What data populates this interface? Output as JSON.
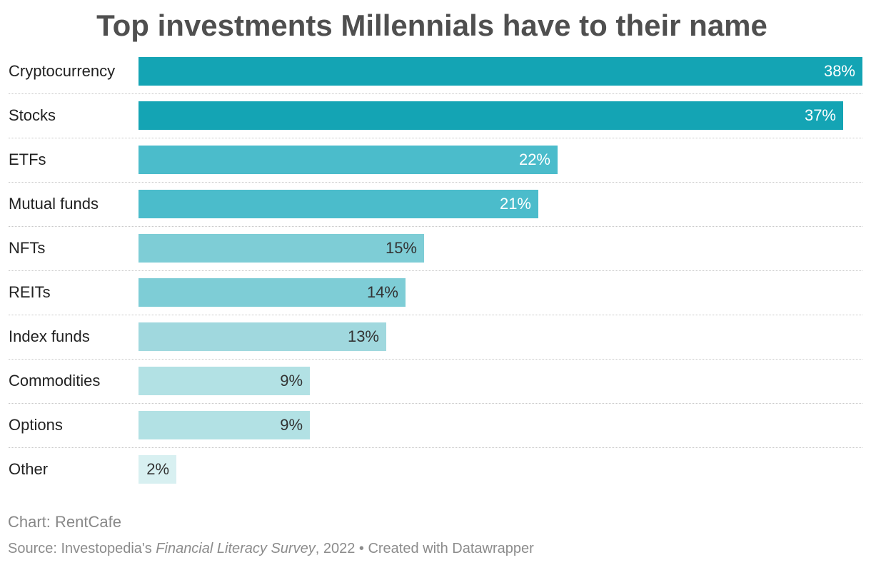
{
  "chart_data": {
    "type": "bar",
    "orientation": "horizontal",
    "title": "Top investments Millennials have to their name",
    "categories": [
      "Cryptocurrency",
      "Stocks",
      "ETFs",
      "Mutual funds",
      "NFTs",
      "REITs",
      "Index funds",
      "Commodities",
      "Options",
      "Other"
    ],
    "values": [
      38,
      37,
      22,
      21,
      15,
      14,
      13,
      9,
      9,
      2
    ],
    "value_labels": [
      "38%",
      "37%",
      "22%",
      "21%",
      "15%",
      "14%",
      "13%",
      "9%",
      "9%",
      "2%"
    ],
    "unit": "%",
    "xlim": [
      0,
      38
    ],
    "colors": [
      "#14a4b4",
      "#14a4b4",
      "#4bbccb",
      "#4bbccb",
      "#7ecdd6",
      "#7ecdd6",
      "#a0d8de",
      "#b2e1e4",
      "#b2e1e4",
      "#d8f0f1"
    ],
    "label_colors": [
      "#ffffff",
      "#ffffff",
      "#ffffff",
      "#ffffff",
      "#333333",
      "#333333",
      "#333333",
      "#333333",
      "#333333",
      "#333333"
    ],
    "grid": false,
    "legend": "none"
  },
  "footer": {
    "chart_credit": "Chart: RentCafe",
    "source_prefix": "Source: Investopedia's ",
    "source_title": "Financial Literacy Survey",
    "source_suffix": ", 2022 • Created with Datawrapper"
  }
}
